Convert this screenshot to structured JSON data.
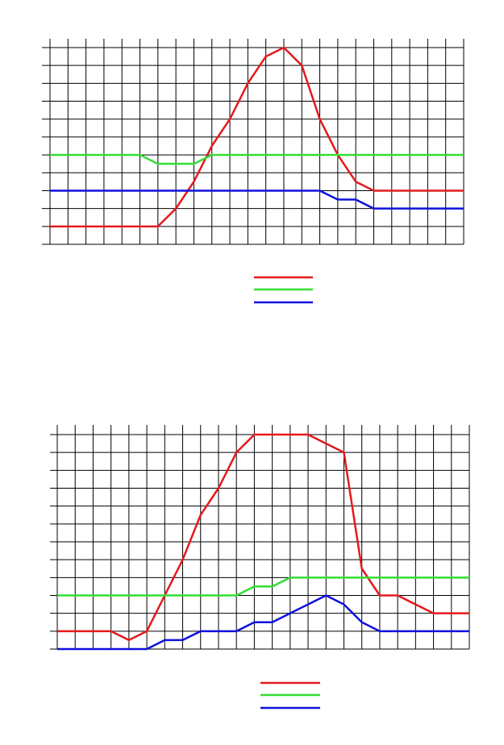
{
  "chart_data": [
    {
      "type": "line",
      "title": "",
      "xlabel": "",
      "ylabel": "",
      "x": [
        0,
        1,
        2,
        3,
        4,
        5,
        6,
        7,
        8,
        9,
        10,
        11,
        12,
        13,
        14,
        15,
        16,
        17,
        18,
        19,
        20,
        21,
        22,
        23
      ],
      "xlim": [
        0,
        23
      ],
      "ylim": [
        0,
        11
      ],
      "grid": true,
      "legend": "bottom-center",
      "series": [
        {
          "color": "#e31a1c",
          "values": [
            1,
            1,
            1,
            1,
            1,
            1,
            1,
            2,
            3.5,
            5.5,
            7,
            9,
            10.5,
            11,
            10,
            7,
            5,
            3.5,
            3,
            3,
            3,
            3,
            3,
            3
          ]
        },
        {
          "color": "#33dd33",
          "values": [
            5,
            5,
            5,
            5,
            5,
            5,
            4.5,
            4.5,
            4.5,
            5,
            5,
            5,
            5,
            5,
            5,
            5,
            5,
            5,
            5,
            5,
            5,
            5,
            5,
            5
          ]
        },
        {
          "color": "#1010dd",
          "values": [
            3,
            3,
            3,
            3,
            3,
            3,
            3,
            3,
            3,
            3,
            3,
            3,
            3,
            3,
            3,
            3,
            2.5,
            2.5,
            2,
            2,
            2,
            2,
            2,
            2
          ]
        }
      ]
    },
    {
      "type": "line",
      "title": "",
      "xlabel": "",
      "ylabel": "",
      "x": [
        0,
        1,
        2,
        3,
        4,
        5,
        6,
        7,
        8,
        9,
        10,
        11,
        12,
        13,
        14,
        15,
        16,
        17,
        18,
        19,
        20,
        21,
        22,
        23
      ],
      "xlim": [
        0,
        23
      ],
      "ylim": [
        0,
        12
      ],
      "grid": true,
      "legend": "bottom-center",
      "series": [
        {
          "color": "#e31a1c",
          "values": [
            1,
            1,
            1,
            1,
            0.5,
            1,
            3,
            5,
            7.5,
            9,
            11,
            12,
            12,
            12,
            12,
            11.5,
            11,
            4.5,
            3,
            3,
            2.5,
            2,
            2,
            2
          ]
        },
        {
          "color": "#33dd33",
          "values": [
            3,
            3,
            3,
            3,
            3,
            3,
            3,
            3,
            3,
            3,
            3,
            3.5,
            3.5,
            4,
            4,
            4,
            4,
            4,
            4,
            4,
            4,
            4,
            4,
            4
          ]
        },
        {
          "color": "#1010dd",
          "values": [
            0,
            0,
            0,
            0,
            0,
            0,
            0.5,
            0.5,
            1,
            1,
            1,
            1.5,
            1.5,
            2,
            2.5,
            3,
            2.5,
            1.5,
            1,
            1,
            1,
            1,
            1,
            1
          ]
        }
      ]
    }
  ]
}
